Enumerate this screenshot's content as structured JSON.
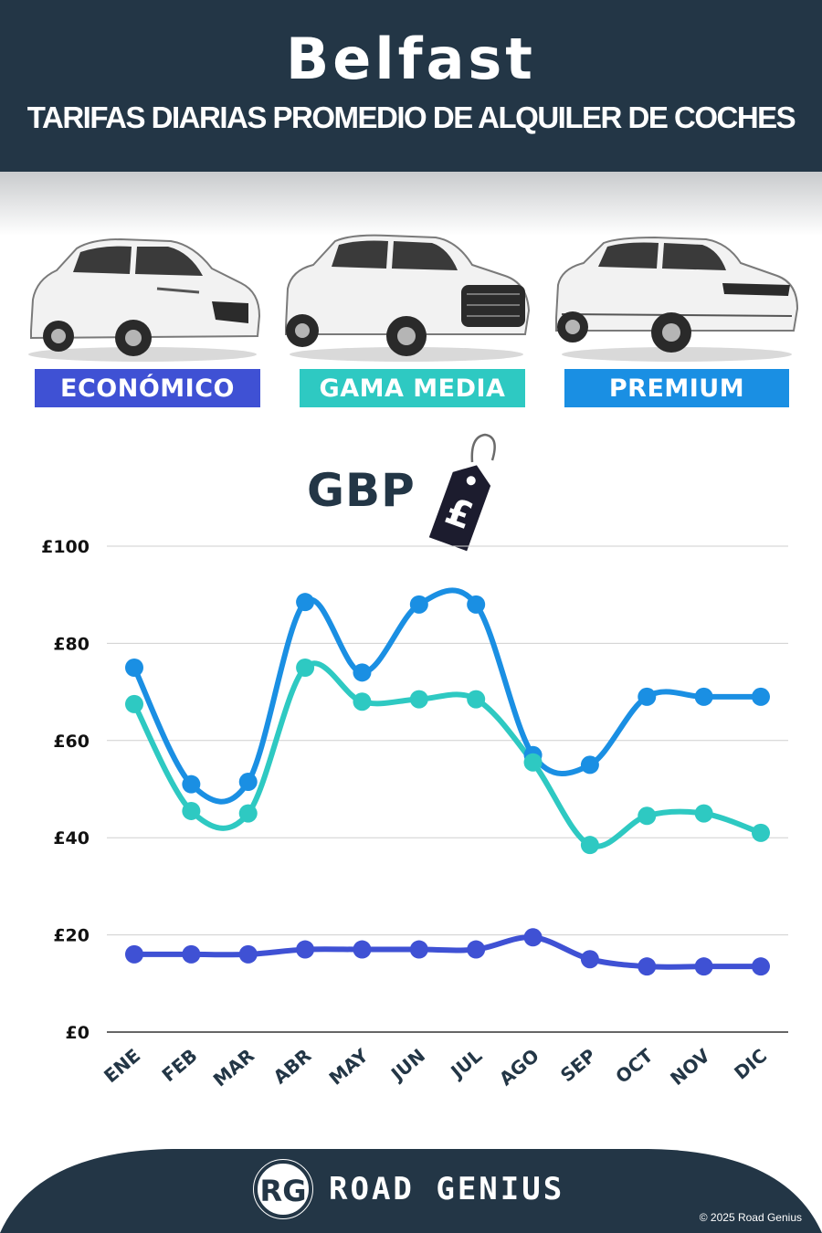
{
  "header": {
    "city": "Belfast",
    "subtitle": "TARIFAS DIARIAS PROMEDIO DE ALQUILER DE COCHES"
  },
  "categories_bar": [
    {
      "label": "ECONÓMICO",
      "color": "#3f51d4"
    },
    {
      "label": "GAMA MEDIA",
      "color": "#2ec9c2"
    },
    {
      "label": "PREMIUM",
      "color": "#1a8fe3"
    }
  ],
  "currency": {
    "label": "GBP",
    "tag_symbol": "£"
  },
  "chart_data": {
    "type": "line",
    "categories": [
      "ENE",
      "FEB",
      "MAR",
      "ABR",
      "MAY",
      "JUN",
      "JUL",
      "AGO",
      "SEP",
      "OCT",
      "NOV",
      "DIC"
    ],
    "series": [
      {
        "name": "PREMIUM",
        "color": "#1a8fe3",
        "values": [
          75,
          51,
          51.5,
          88.5,
          74,
          88,
          88,
          57,
          55,
          69,
          69,
          69
        ]
      },
      {
        "name": "GAMA MEDIA",
        "color": "#2ec9c2",
        "values": [
          67.5,
          45.5,
          45,
          75,
          68,
          68.5,
          68.5,
          55.5,
          38.5,
          44.5,
          45,
          41
        ]
      },
      {
        "name": "ECONÓMICO",
        "color": "#3f51d4",
        "values": [
          16,
          16,
          16,
          17,
          17,
          17,
          17,
          19.5,
          15,
          13.5,
          13.5,
          13.5
        ]
      }
    ],
    "yticks": [
      "£0",
      "£20",
      "£40",
      "£60",
      "£80",
      "£100"
    ],
    "ylim": [
      0,
      100
    ],
    "grid": true
  },
  "footer": {
    "logo_initials": "RG",
    "brand": "ROAD GENIUS",
    "copyright": "© 2025 Road Genius",
    "background": "#233646"
  }
}
